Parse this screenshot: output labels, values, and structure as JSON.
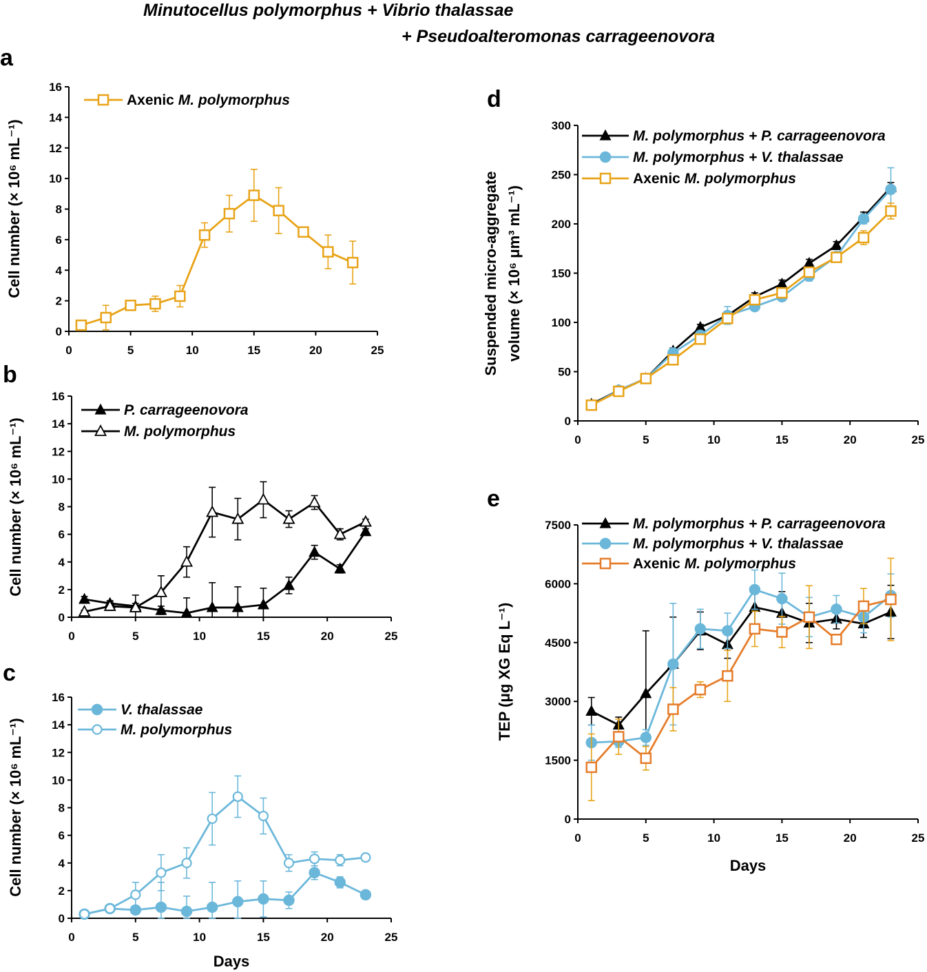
{
  "figure_title": {
    "line1": "Minutocellus polymorphus + Vibrio thalassae",
    "line2": "+ Pseudoalteromonas carrageenovora"
  },
  "colors": {
    "orange": "#E8A317",
    "blue": "#6BB7DA",
    "black": "#000000",
    "red_orange": "#E57D2B"
  },
  "chart_data": [
    {
      "id": "a",
      "panel_label": "a",
      "type": "line",
      "ylabel": "Cell number (× 10⁶ mL⁻¹)",
      "xlabel": "",
      "xlim": [
        0,
        25
      ],
      "ylim": [
        0,
        16
      ],
      "xticks": [
        0,
        5,
        10,
        15,
        20,
        25
      ],
      "yticks": [
        0,
        2,
        4,
        6,
        8,
        10,
        12,
        14,
        16
      ],
      "legend": "top-left",
      "series": [
        {
          "name": "Axenic",
          "name_italic": "M. polymorphus",
          "color": "#E8A317",
          "marker": "square-open",
          "x": [
            1,
            3,
            5,
            7,
            9,
            11,
            13,
            15,
            17,
            19,
            21,
            23
          ],
          "y": [
            0.4,
            0.9,
            1.7,
            1.8,
            2.3,
            6.3,
            7.7,
            8.9,
            7.9,
            6.5,
            5.2,
            4.5
          ],
          "err": [
            0.2,
            0.8,
            0.2,
            0.5,
            0.7,
            0.8,
            1.2,
            1.7,
            1.5,
            0.3,
            1.1,
            1.4
          ]
        }
      ]
    },
    {
      "id": "b",
      "panel_label": "b",
      "type": "line",
      "ylabel": "Cell number (× 10⁶ mL⁻¹)",
      "xlabel": "",
      "xlim": [
        0,
        25
      ],
      "ylim": [
        0,
        16
      ],
      "xticks": [
        0,
        5,
        10,
        15,
        20,
        25
      ],
      "yticks": [
        0,
        2,
        4,
        6,
        8,
        10,
        12,
        14,
        16
      ],
      "legend": "top-left",
      "series": [
        {
          "name": "",
          "name_italic": "P. carrageenovora",
          "color": "#000000",
          "marker": "triangle-filled",
          "x": [
            1,
            3,
            5,
            7,
            9,
            11,
            13,
            15,
            17,
            19,
            21,
            23
          ],
          "y": [
            1.3,
            1.0,
            0.8,
            0.5,
            0.3,
            0.7,
            0.7,
            0.9,
            2.3,
            4.7,
            3.5,
            6.2
          ],
          "err": [
            0.2,
            0.2,
            0.2,
            0.3,
            1.1,
            1.8,
            1.5,
            1.2,
            0.6,
            0.5,
            0.3,
            0.2
          ]
        },
        {
          "name": "",
          "name_italic": "M. polymorphus",
          "color": "#000000",
          "marker": "triangle-open",
          "x": [
            1,
            3,
            5,
            7,
            9,
            11,
            13,
            15,
            17,
            19,
            21,
            23
          ],
          "y": [
            0.4,
            0.8,
            0.7,
            1.8,
            4.0,
            7.6,
            7.1,
            8.5,
            7.1,
            8.3,
            6.0,
            6.9
          ],
          "err": [
            0.1,
            0.3,
            0.9,
            1.2,
            1.1,
            1.8,
            1.5,
            1.3,
            0.6,
            0.5,
            0.4,
            0.2
          ]
        }
      ]
    },
    {
      "id": "c",
      "panel_label": "c",
      "type": "line",
      "ylabel": "Cell number (× 10⁶ mL⁻¹)",
      "xlabel": "Days",
      "xlim": [
        0,
        25
      ],
      "ylim": [
        0,
        16
      ],
      "xticks": [
        0,
        5,
        10,
        15,
        20,
        25
      ],
      "yticks": [
        0,
        2,
        4,
        6,
        8,
        10,
        12,
        14,
        16
      ],
      "legend": "top-left",
      "series": [
        {
          "name": "",
          "name_italic": "V. thalassae",
          "color": "#6BB7DA",
          "marker": "circle-filled",
          "x": [
            1,
            3,
            5,
            7,
            9,
            11,
            13,
            15,
            17,
            19,
            21,
            23
          ],
          "y": [
            0.3,
            0.7,
            0.6,
            0.8,
            0.5,
            0.8,
            1.2,
            1.4,
            1.3,
            3.3,
            2.6,
            1.7
          ],
          "err": [
            0.1,
            0.2,
            0.3,
            1.8,
            1.1,
            1.8,
            1.5,
            1.3,
            0.6,
            0.5,
            0.4,
            0.2
          ]
        },
        {
          "name": "",
          "name_italic": "M. polymorphus",
          "color": "#6BB7DA",
          "marker": "circle-open",
          "x": [
            1,
            3,
            5,
            7,
            9,
            11,
            13,
            15,
            17,
            19,
            21,
            23
          ],
          "y": [
            0.3,
            0.7,
            1.7,
            3.3,
            4.0,
            7.2,
            8.8,
            7.4,
            4.0,
            4.3,
            4.2,
            4.4
          ],
          "err": [
            0.1,
            0.2,
            0.9,
            1.3,
            1.1,
            1.9,
            1.5,
            1.3,
            0.6,
            0.5,
            0.4,
            0.2
          ]
        }
      ]
    },
    {
      "id": "d",
      "panel_label": "d",
      "type": "line",
      "ylabel_line1": "Suspended micro-aggregate",
      "ylabel_line2": "volume (× 10⁶ μm³ mL⁻¹)",
      "xlabel": "",
      "xlim": [
        0,
        25
      ],
      "ylim": [
        0,
        300
      ],
      "xticks": [
        0,
        5,
        10,
        15,
        20,
        25
      ],
      "yticks": [
        0,
        50,
        100,
        150,
        200,
        250,
        300
      ],
      "legend": "top-left",
      "series": [
        {
          "name": "",
          "name_italic": "M. polymorphus + P. carrageenovora",
          "color": "#000000",
          "marker": "triangle-filled",
          "x": [
            1,
            3,
            5,
            7,
            9,
            11,
            13,
            15,
            17,
            19,
            21,
            23
          ],
          "y": [
            17,
            31,
            43,
            71,
            95,
            107,
            126,
            139,
            160,
            178,
            207,
            237
          ],
          "err": [
            1,
            2,
            2,
            3,
            3,
            4,
            4,
            4,
            4,
            4,
            5,
            5
          ]
        },
        {
          "name": "",
          "name_italic": "M. polymorphus + V. thalassae",
          "color": "#6BB7DA",
          "marker": "circle-filled",
          "x": [
            1,
            3,
            5,
            7,
            9,
            11,
            13,
            15,
            17,
            19,
            21,
            23
          ],
          "y": [
            16,
            31,
            43,
            69,
            87,
            107,
            116,
            126,
            147,
            167,
            205,
            235
          ],
          "err": [
            1,
            2,
            2,
            3,
            3,
            9,
            3,
            4,
            5,
            4,
            5,
            22
          ]
        },
        {
          "name": "Axenic",
          "name_italic": "M. polymorphus",
          "color": "#E8A317",
          "marker": "square-open",
          "x": [
            1,
            3,
            5,
            7,
            9,
            11,
            13,
            15,
            17,
            19,
            21,
            23
          ],
          "y": [
            16,
            30,
            43,
            62,
            83,
            104,
            123,
            130,
            151,
            166,
            186,
            213
          ],
          "err": [
            1,
            2,
            2,
            3,
            3,
            4,
            4,
            4,
            4,
            4,
            7,
            8
          ]
        }
      ]
    },
    {
      "id": "e",
      "panel_label": "e",
      "type": "line",
      "ylabel": "TEP (μg XG Eq L⁻¹)",
      "xlabel": "Days",
      "xlim": [
        0,
        25
      ],
      "ylim": [
        0,
        7500
      ],
      "xticks": [
        0,
        5,
        10,
        15,
        20,
        25
      ],
      "yticks": [
        0,
        1500,
        3000,
        4500,
        6000,
        7500
      ],
      "legend": "top-left",
      "series": [
        {
          "name": "",
          "name_italic": "M. polymorphus + P. carrageenovora",
          "color": "#000000",
          "marker": "triangle-filled",
          "x": [
            1,
            3,
            5,
            7,
            9,
            11,
            13,
            15,
            17,
            19,
            21,
            23
          ],
          "y": [
            2750,
            2400,
            3200,
            3950,
            4800,
            4450,
            5400,
            5250,
            5000,
            5100,
            4980,
            5280
          ],
          "err": [
            350,
            200,
            1600,
            1200,
            480,
            350,
            450,
            550,
            500,
            250,
            350,
            680
          ]
        },
        {
          "name": "",
          "name_italic": "M. polymorphus + V. thalassae",
          "color": "#6BB7DA",
          "marker": "circle-filled",
          "x": [
            1,
            3,
            5,
            7,
            9,
            11,
            13,
            15,
            17,
            19,
            21,
            23
          ],
          "y": [
            1950,
            1980,
            2080,
            3950,
            4850,
            4800,
            5850,
            5620,
            5150,
            5350,
            5150,
            5700
          ],
          "err": [
            450,
            150,
            200,
            1550,
            500,
            450,
            500,
            650,
            500,
            350,
            400,
            550
          ]
        },
        {
          "name": "Axenic",
          "name_italic": "M. polymorphus",
          "color": "#E57D2B",
          "marker": "square-open",
          "errColor": "#E8A317",
          "x": [
            1,
            3,
            5,
            7,
            9,
            11,
            13,
            15,
            17,
            19,
            21,
            23
          ],
          "y": [
            1320,
            2100,
            1550,
            2800,
            3300,
            3650,
            4850,
            4770,
            5150,
            4580,
            5430,
            5600
          ],
          "err": [
            850,
            450,
            300,
            550,
            200,
            650,
            450,
            400,
            800,
            100,
            450,
            1050
          ]
        }
      ]
    }
  ]
}
